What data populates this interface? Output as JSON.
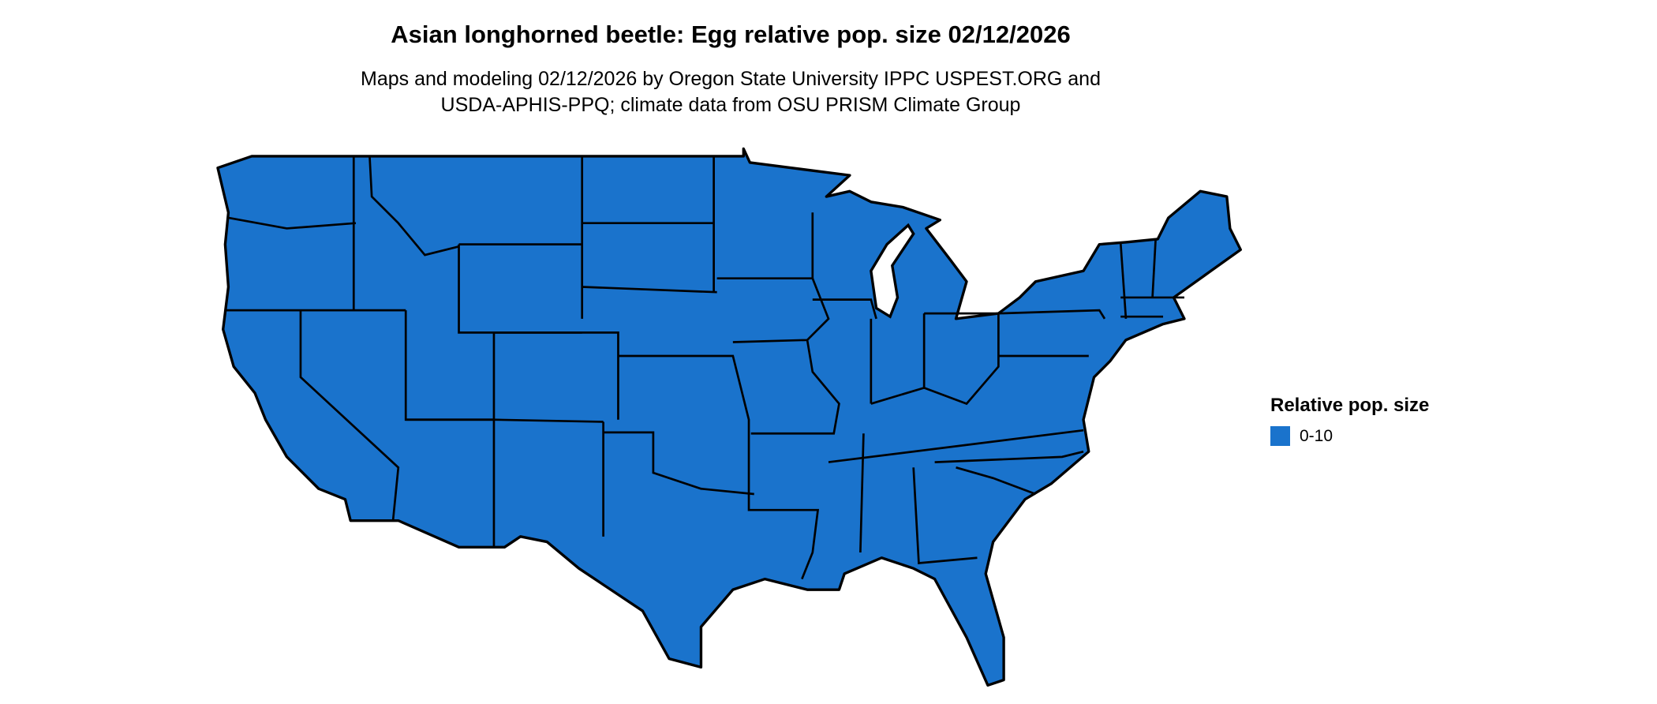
{
  "title": "Asian longhorned beetle: Egg relative pop. size 02/12/2026",
  "subtitle_lines": [
    "Maps and modeling 02/12/2026 by Oregon State University IPPC USPEST.ORG and",
    "USDA-APHIS-PPQ; climate data from OSU PRISM Climate Group"
  ],
  "map": {
    "region": "Contiguous United States",
    "fill_color": "#1a73cc",
    "border_color": "#000000",
    "background": "#ffffff"
  },
  "legend": {
    "title": "Relative pop. size",
    "items": [
      {
        "label": "0-10",
        "color": "#1a73cc"
      }
    ]
  }
}
